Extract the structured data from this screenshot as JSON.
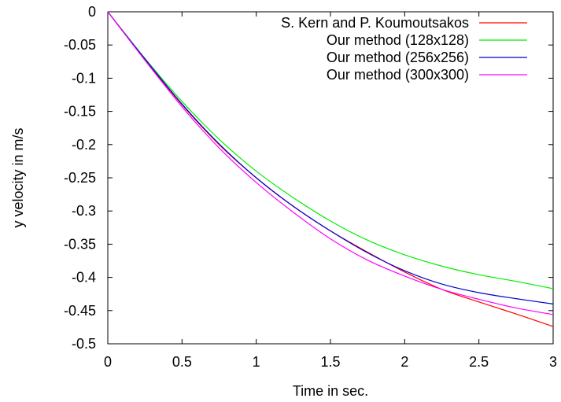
{
  "chart_data": {
    "type": "line",
    "title": "",
    "xlabel": "Time in sec.",
    "ylabel": "y velocity in m/s",
    "xlim": [
      0,
      3
    ],
    "ylim": [
      -0.5,
      0
    ],
    "xticks": [
      0,
      0.5,
      1,
      1.5,
      2,
      2.5,
      3
    ],
    "xtick_labels": [
      "0",
      "0.5",
      "1",
      "1.5",
      "2",
      "2.5",
      "3"
    ],
    "yticks": [
      0,
      -0.05,
      -0.1,
      -0.15,
      -0.2,
      -0.25,
      -0.3,
      -0.35,
      -0.4,
      -0.45,
      -0.5
    ],
    "ytick_labels": [
      "0",
      "-0.05",
      "-0.1",
      "-0.15",
      "-0.2",
      "-0.25",
      "-0.3",
      "-0.35",
      "-0.4",
      "-0.45",
      "-0.5"
    ],
    "grid": false,
    "legend_position": "top-right",
    "x": [
      0,
      0.25,
      0.5,
      0.75,
      1,
      1.25,
      1.5,
      1.75,
      2,
      2.25,
      2.5,
      2.75,
      3
    ],
    "series": [
      {
        "name": "S. Kern and P. Koumoutsakos",
        "color": "#ff0000",
        "values": [
          0,
          -0.072,
          -0.14,
          -0.2,
          -0.25,
          -0.293,
          -0.33,
          -0.362,
          -0.392,
          -0.418,
          -0.437,
          -0.455,
          -0.474
        ]
      },
      {
        "name": "Our method (128x128)",
        "color": "#00ee00",
        "values": [
          0,
          -0.07,
          -0.135,
          -0.192,
          -0.24,
          -0.28,
          -0.315,
          -0.344,
          -0.366,
          -0.383,
          -0.396,
          -0.406,
          -0.417
        ]
      },
      {
        "name": "Our method (256x256)",
        "color": "#0000cc",
        "values": [
          0,
          -0.071,
          -0.139,
          -0.199,
          -0.25,
          -0.293,
          -0.33,
          -0.363,
          -0.39,
          -0.41,
          -0.423,
          -0.432,
          -0.44
        ]
      },
      {
        "name": "Our method (300x300)",
        "color": "#ff00ff",
        "values": [
          0,
          -0.073,
          -0.143,
          -0.205,
          -0.257,
          -0.302,
          -0.342,
          -0.374,
          -0.398,
          -0.418,
          -0.433,
          -0.446,
          -0.456
        ]
      }
    ]
  }
}
